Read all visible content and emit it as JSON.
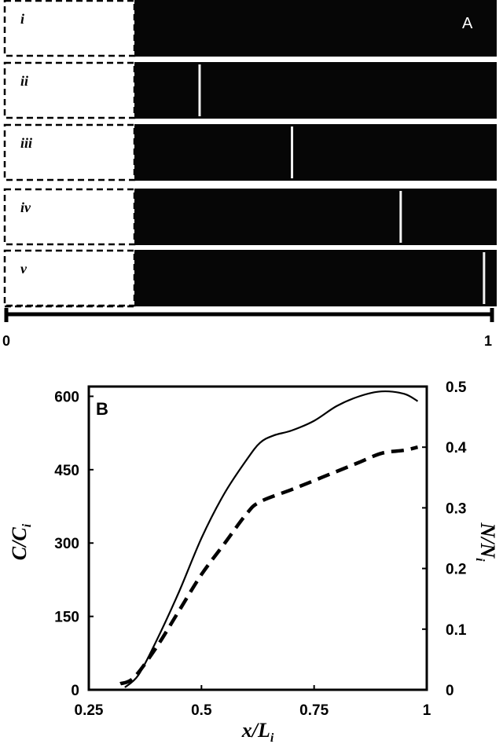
{
  "panel_a": {
    "label": "A",
    "strips": [
      {
        "label": "i",
        "front": null
      },
      {
        "label": "ii",
        "front": 0.18
      },
      {
        "label": "iii",
        "front": 0.435
      },
      {
        "label": "iv",
        "front": 0.735
      },
      {
        "label": "v",
        "front": 0.965
      }
    ],
    "scale": {
      "start_label": "0",
      "end_label": "1"
    }
  },
  "panel_b": {
    "label": "B"
  },
  "chart_data": {
    "type": "line",
    "xlabel": "x/L",
    "xlabel_subscript": "i",
    "ylabel": "C/C",
    "ylabel_subscript": "i",
    "y2label": "N/N",
    "y2label_subscript": "i",
    "xlim": [
      0.25,
      1
    ],
    "ylim": [
      0,
      620
    ],
    "y2lim": [
      0,
      0.5
    ],
    "x_ticks": [
      "0.25",
      "0.5",
      "0.75",
      "1"
    ],
    "y_ticks": [
      "0",
      "150",
      "300",
      "450",
      "600"
    ],
    "y2_ticks": [
      "0",
      "0.1",
      "0.2",
      "0.3",
      "0.4",
      "0.5"
    ],
    "series": [
      {
        "axis": "left",
        "style": "solid",
        "x": [
          0.33,
          0.36,
          0.4,
          0.45,
          0.5,
          0.55,
          0.6,
          0.63,
          0.66,
          0.7,
          0.75,
          0.8,
          0.85,
          0.9,
          0.95,
          0.98
        ],
        "y": [
          5,
          30,
          100,
          200,
          310,
          400,
          470,
          505,
          520,
          530,
          550,
          580,
          600,
          610,
          605,
          590
        ]
      },
      {
        "axis": "right",
        "style": "dashed",
        "x": [
          0.32,
          0.35,
          0.4,
          0.45,
          0.5,
          0.55,
          0.6,
          0.63,
          0.7,
          0.75,
          0.8,
          0.85,
          0.9,
          0.95,
          0.98
        ],
        "y": [
          0.01,
          0.02,
          0.07,
          0.13,
          0.19,
          0.24,
          0.29,
          0.31,
          0.33,
          0.345,
          0.36,
          0.375,
          0.39,
          0.395,
          0.4
        ]
      }
    ]
  }
}
